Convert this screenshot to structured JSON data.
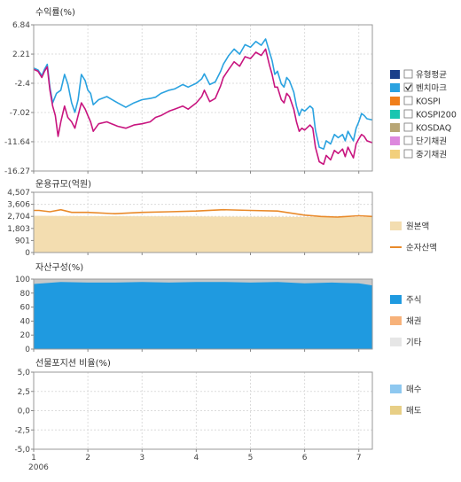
{
  "chart_data": [
    {
      "type": "line",
      "title": "수익률(%)",
      "y_ticks": [
        "6.84",
        "2.21",
        "-2.4",
        "-7.02",
        "-11.64",
        "-16.27"
      ],
      "y_tick_values": [
        6.84,
        2.21,
        -2.4,
        -7.02,
        -11.64,
        -16.27
      ],
      "ylim": [
        -16.27,
        6.84
      ],
      "x_ticks": [
        "1",
        "2",
        "3",
        "4",
        "5",
        "6",
        "7"
      ],
      "x_year_label": "2006",
      "xlim": [
        1,
        7.25
      ],
      "grid": true,
      "legend_position": "right",
      "legend": [
        {
          "label": "유형평균",
          "color": "#1a3f8a",
          "checked": false
        },
        {
          "label": "벤치마크",
          "color": "#2aa2e0",
          "checked": true
        },
        {
          "label": "KOSPI",
          "color": "#f07f1b",
          "checked": false
        },
        {
          "label": "KOSPI200",
          "color": "#19c6b0",
          "checked": false
        },
        {
          "label": "KOSDAQ",
          "color": "#b8a675",
          "checked": false
        },
        {
          "label": "단기채권",
          "color": "#dd88dd",
          "checked": false
        },
        {
          "label": "중기채권",
          "color": "#f2cf7c",
          "checked": false
        }
      ],
      "series": [
        {
          "color": "#2aa2e0",
          "points": [
            [
              1.0,
              0.0
            ],
            [
              1.08,
              -0.3
            ],
            [
              1.15,
              -1.2
            ],
            [
              1.2,
              -0.2
            ],
            [
              1.25,
              0.6
            ],
            [
              1.3,
              -3.0
            ],
            [
              1.35,
              -5.5
            ],
            [
              1.42,
              -4.0
            ],
            [
              1.5,
              -3.5
            ],
            [
              1.57,
              -1.0
            ],
            [
              1.63,
              -2.5
            ],
            [
              1.7,
              -5.5
            ],
            [
              1.76,
              -7.0
            ],
            [
              1.82,
              -5.0
            ],
            [
              1.88,
              -1.0
            ],
            [
              1.95,
              -2.0
            ],
            [
              2.0,
              -3.5
            ],
            [
              2.05,
              -4.0
            ],
            [
              2.1,
              -5.8
            ],
            [
              2.2,
              -5.0
            ],
            [
              2.35,
              -4.5
            ],
            [
              2.55,
              -5.5
            ],
            [
              2.7,
              -6.2
            ],
            [
              2.85,
              -5.5
            ],
            [
              3.0,
              -5.0
            ],
            [
              3.15,
              -4.8
            ],
            [
              3.25,
              -4.6
            ],
            [
              3.35,
              -4.0
            ],
            [
              3.5,
              -3.5
            ],
            [
              3.6,
              -3.3
            ],
            [
              3.75,
              -2.6
            ],
            [
              3.85,
              -3.0
            ],
            [
              4.0,
              -2.4
            ],
            [
              4.1,
              -1.7
            ],
            [
              4.15,
              -0.9
            ],
            [
              4.25,
              -2.6
            ],
            [
              4.35,
              -2.2
            ],
            [
              4.45,
              -0.5
            ],
            [
              4.5,
              0.6
            ],
            [
              4.6,
              2.0
            ],
            [
              4.7,
              3.0
            ],
            [
              4.8,
              2.2
            ],
            [
              4.9,
              3.7
            ],
            [
              5.0,
              3.3
            ],
            [
              5.1,
              4.2
            ],
            [
              5.2,
              3.6
            ],
            [
              5.28,
              4.6
            ],
            [
              5.35,
              2.6
            ],
            [
              5.4,
              1.2
            ],
            [
              5.45,
              -1.0
            ],
            [
              5.5,
              -0.5
            ],
            [
              5.57,
              -2.5
            ],
            [
              5.62,
              -3.0
            ],
            [
              5.67,
              -1.5
            ],
            [
              5.72,
              -2.0
            ],
            [
              5.8,
              -3.8
            ],
            [
              5.85,
              -6.0
            ],
            [
              5.9,
              -7.5
            ],
            [
              5.95,
              -6.5
            ],
            [
              6.0,
              -6.8
            ],
            [
              6.1,
              -6.0
            ],
            [
              6.15,
              -6.4
            ],
            [
              6.2,
              -9.8
            ],
            [
              6.27,
              -12.5
            ],
            [
              6.35,
              -12.8
            ],
            [
              6.4,
              -11.5
            ],
            [
              6.48,
              -12.0
            ],
            [
              6.55,
              -10.5
            ],
            [
              6.62,
              -11.0
            ],
            [
              6.7,
              -10.5
            ],
            [
              6.75,
              -11.5
            ],
            [
              6.8,
              -10.0
            ],
            [
              6.9,
              -11.5
            ],
            [
              6.95,
              -9.5
            ],
            [
              7.0,
              -8.5
            ],
            [
              7.05,
              -7.2
            ],
            [
              7.1,
              -7.5
            ],
            [
              7.15,
              -8.0
            ],
            [
              7.25,
              -8.2
            ]
          ]
        },
        {
          "color": "#c8157f",
          "points": [
            [
              1.0,
              -0.2
            ],
            [
              1.08,
              -0.5
            ],
            [
              1.15,
              -1.5
            ],
            [
              1.2,
              -0.5
            ],
            [
              1.25,
              0.2
            ],
            [
              1.3,
              -3.5
            ],
            [
              1.35,
              -6.0
            ],
            [
              1.4,
              -7.5
            ],
            [
              1.45,
              -10.8
            ],
            [
              1.5,
              -8.5
            ],
            [
              1.57,
              -6.0
            ],
            [
              1.63,
              -7.8
            ],
            [
              1.7,
              -8.5
            ],
            [
              1.76,
              -9.5
            ],
            [
              1.82,
              -7.5
            ],
            [
              1.88,
              -5.5
            ],
            [
              1.95,
              -6.5
            ],
            [
              2.0,
              -7.5
            ],
            [
              2.05,
              -8.5
            ],
            [
              2.1,
              -10.0
            ],
            [
              2.2,
              -8.8
            ],
            [
              2.35,
              -8.5
            ],
            [
              2.55,
              -9.2
            ],
            [
              2.7,
              -9.5
            ],
            [
              2.85,
              -9.0
            ],
            [
              3.0,
              -8.8
            ],
            [
              3.15,
              -8.5
            ],
            [
              3.25,
              -7.8
            ],
            [
              3.35,
              -7.5
            ],
            [
              3.5,
              -6.8
            ],
            [
              3.6,
              -6.5
            ],
            [
              3.75,
              -6.0
            ],
            [
              3.85,
              -6.5
            ],
            [
              4.0,
              -5.5
            ],
            [
              4.1,
              -4.5
            ],
            [
              4.15,
              -3.5
            ],
            [
              4.25,
              -5.3
            ],
            [
              4.35,
              -4.8
            ],
            [
              4.45,
              -2.8
            ],
            [
              4.5,
              -1.5
            ],
            [
              4.6,
              -0.2
            ],
            [
              4.7,
              1.0
            ],
            [
              4.8,
              0.3
            ],
            [
              4.9,
              1.8
            ],
            [
              5.0,
              1.5
            ],
            [
              5.1,
              2.5
            ],
            [
              5.2,
              2.0
            ],
            [
              5.28,
              3.0
            ],
            [
              5.35,
              0.5
            ],
            [
              5.4,
              -1.0
            ],
            [
              5.45,
              -3.0
            ],
            [
              5.5,
              -3.0
            ],
            [
              5.57,
              -5.0
            ],
            [
              5.62,
              -5.5
            ],
            [
              5.67,
              -4.0
            ],
            [
              5.72,
              -4.5
            ],
            [
              5.8,
              -6.5
            ],
            [
              5.85,
              -8.5
            ],
            [
              5.9,
              -10.0
            ],
            [
              5.95,
              -9.5
            ],
            [
              6.0,
              -9.8
            ],
            [
              6.1,
              -9.0
            ],
            [
              6.15,
              -9.5
            ],
            [
              6.2,
              -12.5
            ],
            [
              6.27,
              -14.8
            ],
            [
              6.35,
              -15.2
            ],
            [
              6.4,
              -13.8
            ],
            [
              6.48,
              -14.5
            ],
            [
              6.55,
              -13.0
            ],
            [
              6.62,
              -13.5
            ],
            [
              6.7,
              -12.8
            ],
            [
              6.75,
              -14.0
            ],
            [
              6.8,
              -12.5
            ],
            [
              6.9,
              -14.2
            ],
            [
              6.95,
              -12.0
            ],
            [
              7.0,
              -11.2
            ],
            [
              7.05,
              -10.5
            ],
            [
              7.1,
              -10.8
            ],
            [
              7.15,
              -11.5
            ],
            [
              7.25,
              -11.8
            ]
          ]
        }
      ]
    },
    {
      "type": "area",
      "title": "운용규모(억원)",
      "y_ticks": [
        "4,507",
        "3,606",
        "2,704",
        "1,803",
        "901",
        "0"
      ],
      "y_tick_values": [
        4507,
        3606,
        2704,
        1803,
        901,
        0
      ],
      "ylim": [
        0,
        4507
      ],
      "x_ticks": [
        "1",
        "2",
        "3",
        "4",
        "5",
        "6",
        "7"
      ],
      "xlim": [
        1,
        7.25
      ],
      "grid": true,
      "legend_position": "right",
      "legend": [
        {
          "label": "원본액",
          "color": "#f3ddb0",
          "kind": "area"
        },
        {
          "label": "순자산액",
          "color": "#e98a2a",
          "kind": "line"
        }
      ],
      "principal": [
        [
          1.0,
          2750
        ],
        [
          2.0,
          2720
        ],
        [
          3.0,
          2710
        ],
        [
          4.0,
          2700
        ],
        [
          5.0,
          2680
        ],
        [
          6.0,
          2660
        ],
        [
          7.25,
          2650
        ]
      ],
      "net_assets": [
        [
          1.0,
          3150
        ],
        [
          1.1,
          3150
        ],
        [
          1.3,
          3050
        ],
        [
          1.5,
          3200
        ],
        [
          1.7,
          3000
        ],
        [
          2.0,
          3000
        ],
        [
          2.5,
          2900
        ],
        [
          3.0,
          3000
        ],
        [
          3.5,
          3050
        ],
        [
          4.0,
          3100
        ],
        [
          4.5,
          3200
        ],
        [
          5.0,
          3150
        ],
        [
          5.5,
          3100
        ],
        [
          6.0,
          2800
        ],
        [
          6.3,
          2700
        ],
        [
          6.6,
          2650
        ],
        [
          7.0,
          2750
        ],
        [
          7.25,
          2700
        ]
      ]
    },
    {
      "type": "area",
      "title": "자산구성(%)",
      "y_ticks": [
        "100",
        "80",
        "60",
        "40",
        "20",
        "0"
      ],
      "y_tick_values": [
        100,
        80,
        60,
        40,
        20,
        0
      ],
      "ylim": [
        0,
        100
      ],
      "x_ticks": [
        "1",
        "2",
        "3",
        "4",
        "5",
        "6",
        "7"
      ],
      "xlim": [
        1,
        7.25
      ],
      "grid": false,
      "legend_position": "right",
      "legend": [
        {
          "label": "주식",
          "color": "#1f9ae0",
          "kind": "area"
        },
        {
          "label": "채권",
          "color": "#f7b27a",
          "kind": "area"
        },
        {
          "label": "기타",
          "color": "#e6e6e6",
          "kind": "area"
        }
      ],
      "stock_pct": [
        [
          1.0,
          93
        ],
        [
          1.5,
          96
        ],
        [
          2.0,
          95
        ],
        [
          2.5,
          95
        ],
        [
          3.0,
          96
        ],
        [
          3.5,
          95
        ],
        [
          4.0,
          96
        ],
        [
          4.5,
          96
        ],
        [
          5.0,
          95
        ],
        [
          5.5,
          96
        ],
        [
          6.0,
          94
        ],
        [
          6.5,
          95
        ],
        [
          7.0,
          94
        ],
        [
          7.25,
          91
        ]
      ]
    },
    {
      "type": "area",
      "title": "선물포지션 비율(%)",
      "y_ticks": [
        "5,0",
        "2,5",
        "0,0",
        "-2,5",
        "-5,0"
      ],
      "y_tick_values": [
        5,
        2.5,
        0,
        -2.5,
        -5
      ],
      "ylim": [
        -5,
        5
      ],
      "x_ticks": [
        "1",
        "2",
        "3",
        "4",
        "5",
        "6",
        "7"
      ],
      "x_year_label": "2006",
      "xlim": [
        1,
        7.25
      ],
      "grid": true,
      "legend_position": "right",
      "legend": [
        {
          "label": "매수",
          "color": "#8ec8f0",
          "kind": "area"
        },
        {
          "label": "매도",
          "color": "#e8cf86",
          "kind": "area"
        }
      ],
      "values": []
    }
  ]
}
